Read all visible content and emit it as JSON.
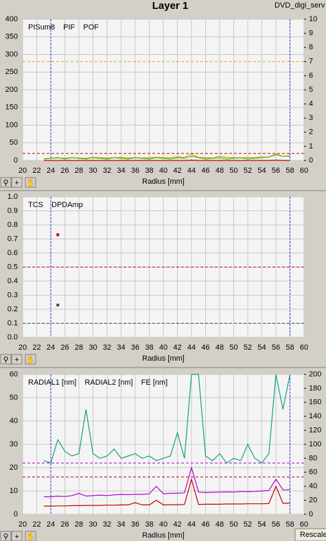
{
  "title": "Layer 1",
  "window_label": "DVD_digi_serv",
  "button": "Rescale",
  "chart_data": [
    {
      "type": "line",
      "xlabel": "Radius [mm]",
      "x": [
        23,
        24,
        25,
        26,
        27,
        28,
        29,
        30,
        31,
        32,
        33,
        34,
        35,
        36,
        37,
        38,
        39,
        40,
        41,
        42,
        43,
        44,
        45,
        46,
        47,
        48,
        49,
        50,
        51,
        52,
        53,
        54,
        55,
        56,
        57,
        58
      ],
      "xlim": [
        20,
        60
      ],
      "xticks": [
        20,
        22,
        24,
        26,
        28,
        30,
        32,
        34,
        36,
        38,
        40,
        42,
        44,
        46,
        48,
        50,
        52,
        54,
        56,
        58,
        60
      ],
      "ylim": [
        0,
        400
      ],
      "yticks": [
        0,
        50,
        100,
        150,
        200,
        250,
        300,
        350,
        400
      ],
      "y2lim": [
        0,
        10
      ],
      "y2ticks": [
        0,
        1,
        2,
        3,
        4,
        5,
        6,
        7,
        8,
        9,
        10
      ],
      "xmarkers": [
        24,
        58
      ],
      "thresholds": [
        {
          "value": 280,
          "axis": "y",
          "color": "#e8a000"
        },
        {
          "value": 0.5,
          "axis": "y2",
          "color": "#c00000"
        }
      ],
      "series": [
        {
          "name": "PISum8",
          "color": "#e8a000",
          "axis": "y",
          "values": [
            5,
            6,
            7,
            6,
            8,
            7,
            6,
            9,
            8,
            7,
            8,
            9,
            7,
            8,
            7,
            8,
            9,
            8,
            8,
            10,
            9,
            18,
            9,
            8,
            7,
            12,
            9,
            8,
            7,
            9,
            8,
            10,
            9,
            18,
            12,
            14
          ]
        },
        {
          "name": "PIF",
          "color": "#40c000",
          "axis": "y2",
          "values": [
            0.1,
            0.15,
            0.2,
            0.1,
            0.2,
            0.15,
            0.1,
            0.2,
            0.15,
            0.1,
            0.2,
            0.15,
            0.1,
            0.2,
            0.15,
            0.1,
            0.2,
            0.15,
            0.1,
            0.2,
            0.15,
            0.3,
            0.2,
            0.1,
            0.15,
            0.2,
            0.1,
            0.15,
            0.2,
            0.1,
            0.15,
            0.2,
            0.25,
            0.4,
            0.3,
            0.3
          ]
        },
        {
          "name": "POF",
          "color": "#c00000",
          "axis": "y",
          "values": [
            0,
            0,
            0,
            0,
            0,
            0,
            0,
            0,
            0,
            0,
            0,
            0,
            0,
            0,
            0,
            0,
            0,
            0,
            0,
            0,
            0,
            1,
            0,
            0,
            0,
            0,
            0,
            0,
            0,
            0,
            0,
            0,
            0,
            1,
            0,
            0
          ]
        }
      ]
    },
    {
      "type": "scatter",
      "xlabel": "Radius [mm]",
      "xlim": [
        20,
        60
      ],
      "xticks": [
        20,
        22,
        24,
        26,
        28,
        30,
        32,
        34,
        36,
        38,
        40,
        42,
        44,
        46,
        48,
        50,
        52,
        54,
        56,
        58,
        60
      ],
      "ylim": [
        0,
        1
      ],
      "yticks": [
        {
          "value": 0,
          "label": "0.0"
        },
        0.1,
        0.2,
        0.3,
        0.4,
        0.5,
        0.6,
        0.7,
        0.8,
        0.9,
        {
          "value": 1,
          "label": "1.0"
        }
      ],
      "xmarkers": [
        24,
        58
      ],
      "thresholds": [
        {
          "value": 0.5,
          "axis": "y",
          "color": "#c00020"
        },
        {
          "value": 0.1,
          "axis": "y",
          "color": "#206020"
        }
      ],
      "series": [
        {
          "name": "TCS",
          "color": "#206020",
          "x": [
            25
          ],
          "values": [
            0.23
          ]
        },
        {
          "name": "DPDAmp",
          "color": "#c00020",
          "x": [
            25
          ],
          "values": [
            0.73
          ]
        }
      ]
    },
    {
      "type": "line",
      "xlabel": "Radius [mm]",
      "x": [
        23,
        24,
        25,
        26,
        27,
        28,
        29,
        30,
        31,
        32,
        33,
        34,
        35,
        36,
        37,
        38,
        39,
        40,
        41,
        42,
        43,
        44,
        45,
        46,
        47,
        48,
        49,
        50,
        51,
        52,
        53,
        54,
        55,
        56,
        57,
        58
      ],
      "xlim": [
        20,
        60
      ],
      "xticks": [
        20,
        22,
        24,
        26,
        28,
        30,
        32,
        34,
        36,
        38,
        40,
        42,
        44,
        46,
        48,
        50,
        52,
        54,
        56,
        58,
        60
      ],
      "ylim": [
        0,
        60
      ],
      "yticks": [
        0,
        10,
        20,
        30,
        40,
        50,
        60
      ],
      "y2lim": [
        0,
        200
      ],
      "y2ticks": [
        0,
        20,
        40,
        60,
        80,
        100,
        120,
        140,
        160,
        180,
        200
      ],
      "xmarkers": [
        24,
        58
      ],
      "thresholds": [
        {
          "value": 22,
          "axis": "y",
          "color": "#b000d0"
        },
        {
          "value": 16,
          "axis": "y",
          "color": "#c00000"
        }
      ],
      "series": [
        {
          "name": "RADIAL1 [nm]",
          "color": "#b000d0",
          "axis": "y",
          "values": [
            7.5,
            7.5,
            7.8,
            7.6,
            8,
            9,
            7.8,
            8,
            8.2,
            8,
            8.3,
            8.5,
            8.4,
            8.6,
            8.5,
            8.8,
            12,
            8.8,
            9,
            9,
            9.2,
            20,
            9.5,
            9.3,
            9.4,
            9.5,
            9.6,
            9.5,
            9.8,
            9.7,
            9.8,
            10,
            10.2,
            15,
            10.5,
            10.5
          ]
        },
        {
          "name": "RADIAL2 [nm]",
          "color": "#c00000",
          "axis": "y",
          "values": [
            3.5,
            3.5,
            3.6,
            3.6,
            3.7,
            3.7,
            3.8,
            3.8,
            3.8,
            3.9,
            3.9,
            4,
            4,
            5,
            4,
            4,
            6,
            4,
            4.1,
            4.1,
            4.2,
            15,
            4.2,
            4.3,
            4.3,
            4.3,
            4.4,
            4.4,
            4.4,
            4.5,
            4.5,
            4.5,
            4.6,
            12,
            4.7,
            4.7
          ]
        },
        {
          "name": "FE [nm]",
          "color": "#10a080",
          "axis": "y",
          "values": [
            23,
            22,
            32,
            27,
            25,
            26,
            45,
            26,
            24,
            25,
            28,
            24,
            25,
            26,
            24,
            25,
            23,
            24,
            25,
            35,
            24,
            60,
            60,
            25,
            23,
            26,
            22,
            24,
            23,
            30,
            24,
            22,
            26,
            60,
            45,
            60
          ]
        }
      ]
    }
  ]
}
